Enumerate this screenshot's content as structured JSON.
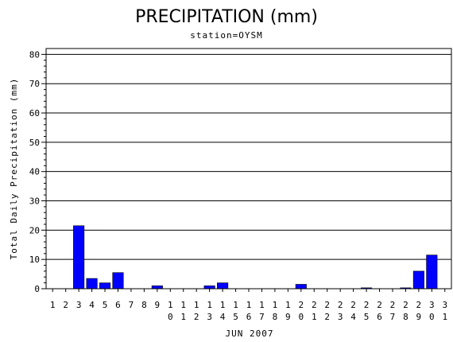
{
  "chart_data": {
    "type": "bar",
    "title": "PRECIPITATION (mm)",
    "subtitle": "station=OYSM",
    "xlabel": "JUN 2007",
    "ylabel": "Total Daily Precipitation (mm)",
    "ylim": [
      0,
      82
    ],
    "yticks": [
      0,
      10,
      20,
      30,
      40,
      50,
      60,
      70,
      80
    ],
    "grid": true,
    "bar_color": "#0000ff",
    "categories": [
      "1",
      "2",
      "3",
      "4",
      "5",
      "6",
      "7",
      "8",
      "9",
      "10",
      "11",
      "12",
      "13",
      "14",
      "15",
      "16",
      "17",
      "18",
      "19",
      "20",
      "21",
      "22",
      "23",
      "24",
      "25",
      "26",
      "27",
      "28",
      "29",
      "30",
      "31"
    ],
    "values": [
      0,
      0,
      21.5,
      3.5,
      2,
      5.5,
      0,
      0,
      1,
      0,
      0,
      0,
      1,
      2,
      0,
      0,
      0,
      0,
      0,
      1.5,
      0,
      0,
      0,
      0,
      0.3,
      0,
      0,
      0.3,
      6,
      11.5,
      0
    ]
  }
}
